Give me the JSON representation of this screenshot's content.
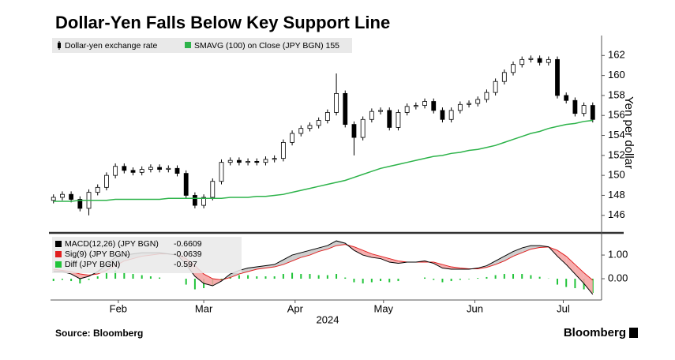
{
  "chart_data": [
    {
      "type": "candlestick",
      "title": "Dollar-Yen Falls Below Key Support Line",
      "y_label": "Yen per dollar",
      "x": [
        0,
        3,
        6,
        9,
        12,
        15,
        18,
        21,
        24,
        27,
        30,
        33,
        36,
        39,
        42,
        45,
        48,
        51,
        54,
        57,
        60,
        63,
        66,
        69,
        72,
        75,
        78,
        81,
        84,
        87,
        90,
        93,
        96,
        99,
        102,
        105,
        108,
        111,
        114,
        117,
        120,
        123,
        126,
        129,
        132,
        135,
        138,
        141,
        144,
        147,
        150,
        153,
        156,
        159,
        162,
        165,
        168,
        171,
        174,
        177,
        180,
        183
      ],
      "xlim": [
        -1,
        186
      ],
      "candles": {
        "name": "Dollar-yen exchange rate",
        "up_color": "#ffffff",
        "down_color": "#000000",
        "open": [
          147.5,
          147.8,
          148.1,
          147.6,
          146.7,
          148.3,
          148.8,
          150.0,
          150.9,
          150.5,
          150.3,
          150.6,
          150.8,
          150.6,
          150.7,
          150.2,
          148.0,
          147.0,
          147.8,
          149.4,
          151.3,
          151.5,
          151.3,
          151.4,
          151.3,
          151.6,
          151.7,
          153.3,
          154.2,
          154.7,
          155.0,
          155.5,
          156.3,
          158.2,
          155.1,
          153.8,
          155.6,
          156.4,
          156.5,
          154.8,
          156.3,
          156.9,
          157.0,
          157.4,
          156.5,
          155.6,
          156.5,
          157.1,
          157.2,
          157.6,
          158.3,
          159.4,
          160.3,
          161.1,
          161.6,
          161.7,
          161.3,
          161.6,
          158.0,
          157.5,
          156.2,
          157.0
        ],
        "high": [
          148.1,
          148.4,
          148.4,
          147.9,
          148.6,
          149.1,
          150.3,
          151.2,
          151.2,
          150.8,
          150.9,
          151.1,
          151.1,
          151.0,
          151.0,
          150.5,
          148.3,
          148.1,
          149.7,
          151.6,
          151.8,
          151.8,
          151.7,
          151.7,
          151.9,
          152.0,
          153.6,
          154.5,
          155.0,
          155.3,
          155.8,
          156.6,
          160.2,
          158.5,
          155.4,
          155.9,
          156.7,
          156.8,
          156.8,
          156.6,
          157.2,
          157.3,
          157.7,
          157.7,
          156.8,
          156.8,
          157.4,
          157.5,
          157.9,
          158.6,
          159.7,
          160.6,
          161.4,
          161.9,
          162.0,
          162.0,
          161.9,
          161.9,
          158.3,
          157.8,
          157.3,
          157.3
        ],
        "low": [
          147.2,
          147.5,
          147.3,
          146.4,
          146.0,
          148.0,
          148.5,
          149.7,
          150.2,
          150.0,
          150.0,
          150.3,
          150.3,
          150.3,
          149.9,
          147.7,
          146.7,
          146.7,
          147.5,
          149.1,
          151.0,
          151.0,
          151.0,
          151.0,
          151.0,
          151.3,
          151.4,
          153.0,
          153.9,
          154.4,
          154.7,
          155.2,
          156.0,
          154.8,
          152.0,
          153.5,
          155.3,
          156.1,
          154.5,
          154.5,
          156.0,
          156.6,
          156.7,
          156.2,
          155.3,
          155.3,
          156.2,
          156.8,
          156.9,
          157.3,
          158.0,
          159.1,
          160.0,
          160.8,
          161.3,
          161.0,
          161.0,
          157.7,
          157.2,
          155.9,
          155.9,
          155.3
        ],
        "close": [
          147.8,
          148.1,
          147.6,
          146.7,
          148.3,
          148.8,
          150.0,
          150.9,
          150.5,
          150.3,
          150.6,
          150.8,
          150.6,
          150.7,
          150.2,
          148.0,
          147.0,
          147.8,
          149.4,
          151.3,
          151.5,
          151.3,
          151.4,
          151.3,
          151.6,
          151.7,
          153.3,
          154.2,
          154.7,
          155.0,
          155.5,
          156.3,
          158.2,
          155.1,
          153.8,
          155.6,
          156.4,
          156.5,
          154.8,
          156.3,
          156.9,
          157.0,
          157.4,
          156.5,
          155.6,
          156.5,
          157.1,
          157.2,
          157.6,
          158.3,
          159.4,
          160.3,
          161.1,
          161.6,
          161.7,
          161.3,
          161.6,
          158.0,
          157.5,
          156.2,
          157.0,
          155.6
        ]
      },
      "series": [
        {
          "name": "SMAVG (100)  on Close (JPY BGN) 155",
          "color": "#2db34a",
          "values": [
            147.4,
            147.4,
            147.4,
            147.5,
            147.5,
            147.5,
            147.5,
            147.6,
            147.6,
            147.6,
            147.6,
            147.6,
            147.6,
            147.7,
            147.7,
            147.7,
            147.7,
            147.7,
            147.7,
            147.7,
            147.8,
            147.8,
            147.8,
            147.9,
            147.9,
            148.0,
            148.1,
            148.3,
            148.5,
            148.7,
            148.9,
            149.1,
            149.3,
            149.5,
            149.8,
            150.1,
            150.4,
            150.7,
            150.9,
            151.1,
            151.3,
            151.5,
            151.7,
            151.9,
            152.0,
            152.2,
            152.3,
            152.5,
            152.6,
            152.8,
            153.0,
            153.3,
            153.6,
            153.9,
            154.2,
            154.4,
            154.7,
            154.9,
            155.1,
            155.2,
            155.4,
            155.5
          ]
        }
      ],
      "ylim": [
        144.4,
        164
      ],
      "yticks": [
        146,
        148,
        150,
        152,
        154,
        156,
        158,
        160,
        162
      ],
      "grid": false
    },
    {
      "type": "macd",
      "xticks": [
        {
          "value": 22,
          "label": "Feb"
        },
        {
          "value": 51,
          "label": "Mar"
        },
        {
          "value": 82,
          "label": "Apr"
        },
        {
          "value": 112,
          "label": "May"
        },
        {
          "value": 143,
          "label": "Jun"
        },
        {
          "value": 173,
          "label": "Jul"
        }
      ],
      "x_label": "2024",
      "ylim": [
        -0.9,
        1.87
      ],
      "yticks": [
        {
          "value": 1,
          "label": "1.00"
        },
        {
          "value": 0,
          "label": "0.00"
        }
      ],
      "series": [
        {
          "name": "MACD(12,26) (JPY BGN)",
          "last_value": -0.6609,
          "color": "#000000",
          "values": [
            0.3,
            0.3,
            0.2,
            0.0,
            0.1,
            0.3,
            0.6,
            0.9,
            1.0,
            1.05,
            1.1,
            1.1,
            1.1,
            1.05,
            1.0,
            0.6,
            0.1,
            -0.2,
            -0.3,
            -0.1,
            0.2,
            0.35,
            0.45,
            0.5,
            0.55,
            0.6,
            0.8,
            1.0,
            1.1,
            1.2,
            1.3,
            1.4,
            1.6,
            1.5,
            1.2,
            1.0,
            0.9,
            0.85,
            0.7,
            0.65,
            0.7,
            0.7,
            0.75,
            0.65,
            0.45,
            0.4,
            0.4,
            0.4,
            0.45,
            0.55,
            0.75,
            0.95,
            1.15,
            1.3,
            1.4,
            1.4,
            1.35,
            0.95,
            0.6,
            0.2,
            -0.2,
            -0.66
          ]
        },
        {
          "name": "Sig(9) (JPY BGN)",
          "last_value": -0.0639,
          "color": "#e02020",
          "values": [
            0.4,
            0.35,
            0.3,
            0.2,
            0.15,
            0.2,
            0.35,
            0.55,
            0.75,
            0.85,
            0.95,
            1.0,
            1.05,
            1.05,
            1.0,
            0.85,
            0.55,
            0.2,
            0.0,
            -0.05,
            0.05,
            0.2,
            0.3,
            0.4,
            0.45,
            0.5,
            0.6,
            0.75,
            0.9,
            1.0,
            1.15,
            1.25,
            1.4,
            1.45,
            1.35,
            1.2,
            1.05,
            0.95,
            0.85,
            0.75,
            0.7,
            0.7,
            0.7,
            0.7,
            0.6,
            0.5,
            0.45,
            0.42,
            0.42,
            0.48,
            0.6,
            0.75,
            0.95,
            1.1,
            1.25,
            1.32,
            1.34,
            1.2,
            0.95,
            0.6,
            0.25,
            -0.06
          ]
        },
        {
          "name": "Diff (JPY BGN)",
          "last_value": -0.597,
          "color": "#22c43a",
          "values": [
            -0.1,
            -0.05,
            -0.1,
            -0.2,
            -0.05,
            0.1,
            0.25,
            0.35,
            0.25,
            0.2,
            0.15,
            0.1,
            0.05,
            0.0,
            0.0,
            -0.25,
            -0.45,
            -0.4,
            -0.3,
            -0.05,
            0.15,
            0.15,
            0.15,
            0.1,
            0.1,
            0.1,
            0.2,
            0.25,
            0.2,
            0.2,
            0.15,
            0.15,
            0.2,
            0.05,
            -0.15,
            -0.2,
            -0.15,
            -0.1,
            -0.15,
            -0.1,
            0.0,
            0.0,
            0.05,
            -0.05,
            -0.15,
            -0.1,
            -0.05,
            -0.02,
            0.03,
            0.07,
            0.15,
            0.2,
            0.2,
            0.2,
            0.15,
            0.08,
            0.01,
            -0.25,
            -0.35,
            -0.4,
            -0.45,
            -0.6
          ]
        }
      ]
    }
  ],
  "source": "Source: Bloomberg",
  "brand": "Bloomberg"
}
